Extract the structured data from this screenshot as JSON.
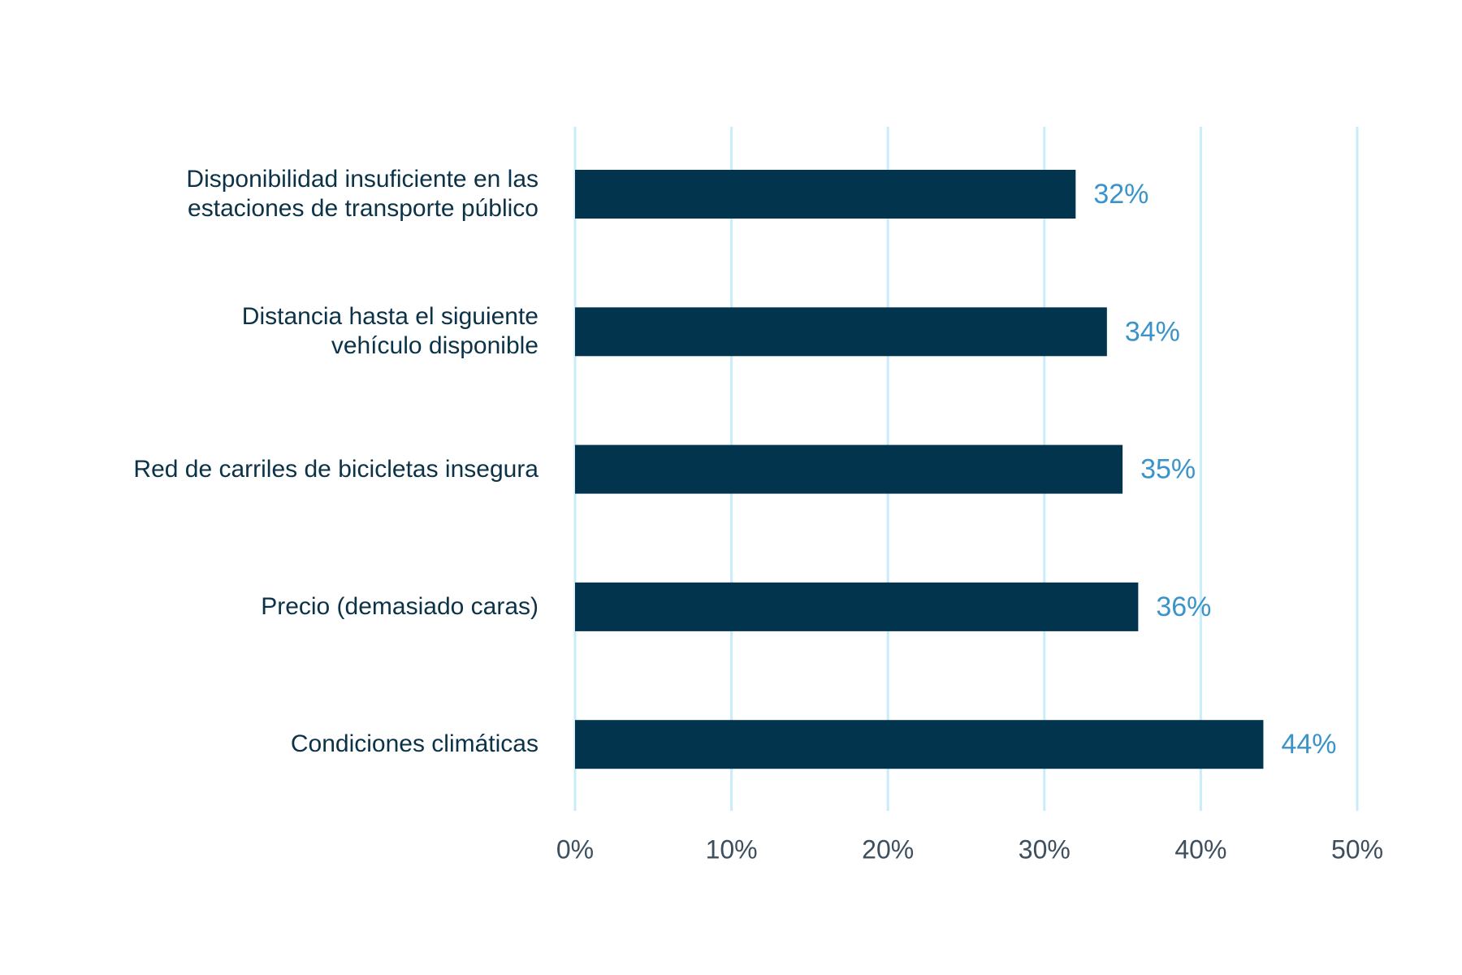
{
  "chart_data": {
    "type": "bar",
    "orientation": "horizontal",
    "categories": [
      "Disponibilidad insuficiente en las\nestaciones de transporte público",
      "Distancia hasta el siguiente\nvehículo disponible",
      "Red de carriles de bicicletas insegura",
      "Precio (demasiado caras)",
      "Condiciones climáticas"
    ],
    "values": [
      32,
      34,
      35,
      36,
      44
    ],
    "value_labels": [
      "32%",
      "34%",
      "35%",
      "36%",
      "44%"
    ],
    "color": "#02344d",
    "xlim": [
      0,
      50
    ],
    "xticks": [
      {
        "value": 0,
        "label": "0%"
      },
      {
        "value": 10,
        "label": "10%"
      },
      {
        "value": 20,
        "label": "20%"
      },
      {
        "value": 30,
        "label": "30%"
      },
      {
        "value": 40,
        "label": "40%"
      },
      {
        "value": 50,
        "label": "50%"
      }
    ],
    "grid": true
  }
}
